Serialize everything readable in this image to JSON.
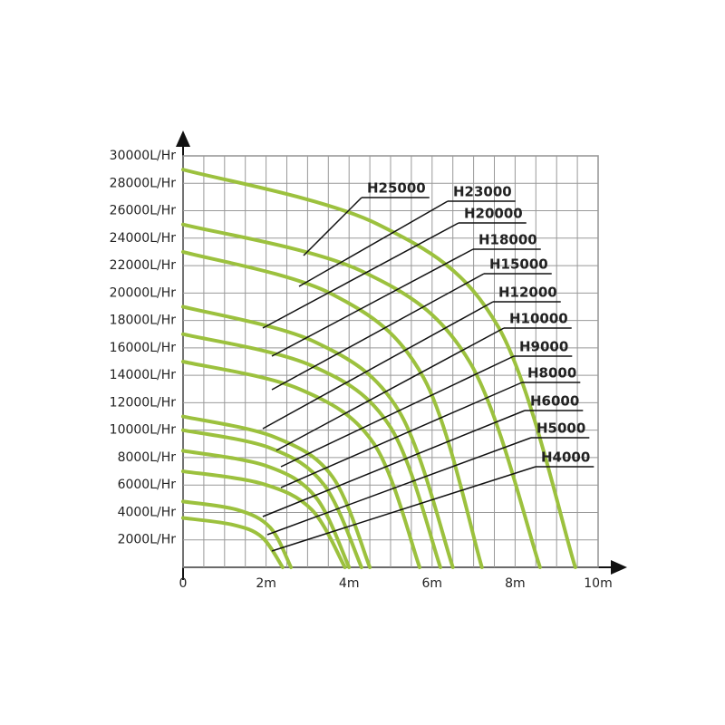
{
  "chart_data": {
    "type": "line",
    "xlim": [
      0,
      10
    ],
    "ylim": [
      0,
      30000
    ],
    "xticks": [
      0,
      {
        "value": 2,
        "label": "2m"
      },
      {
        "value": 4,
        "label": "4m"
      },
      {
        "value": 6,
        "label": "6m"
      },
      {
        "value": 8,
        "label": "8m"
      },
      {
        "value": 10,
        "label": "10m"
      }
    ],
    "yticks": [
      {
        "value": 2000,
        "label": "2000L/Hr"
      },
      {
        "value": 4000,
        "label": "4000L/Hr"
      },
      {
        "value": 6000,
        "label": "6000L/Hr"
      },
      {
        "value": 8000,
        "label": "8000L/Hr"
      },
      {
        "value": 10000,
        "label": "10000L/Hr"
      },
      {
        "value": 12000,
        "label": "12000L/Hr"
      },
      {
        "value": 14000,
        "label": "14000L/Hr"
      },
      {
        "value": 16000,
        "label": "16000L/Hr"
      },
      {
        "value": 18000,
        "label": "18000L/Hr"
      },
      {
        "value": 20000,
        "label": "20000L/Hr"
      },
      {
        "value": 22000,
        "label": "22000L/Hr"
      },
      {
        "value": 24000,
        "label": "24000L/Hr"
      },
      {
        "value": 26000,
        "label": "26000L/Hr"
      },
      {
        "value": 28000,
        "label": "28000L/Hr"
      },
      {
        "value": 30000,
        "label": "30000L/Hr"
      }
    ],
    "grid": true,
    "color": "#9cc13e",
    "series": [
      {
        "name": "H25000",
        "x": [
          0,
          4.7,
          7.6,
          9.45
        ],
        "values": [
          29000,
          25000,
          17500,
          0
        ]
      },
      {
        "name": "H23000",
        "x": [
          0,
          4.3,
          6.9,
          8.6
        ],
        "values": [
          25000,
          21600,
          15000,
          0
        ]
      },
      {
        "name": "H20000",
        "x": [
          0,
          3.6,
          5.8,
          7.2
        ],
        "values": [
          23000,
          19900,
          13800,
          0
        ]
      },
      {
        "name": "H18000",
        "x": [
          0,
          3.2,
          5.2,
          6.5
        ],
        "values": [
          19000,
          16400,
          11400,
          0
        ]
      },
      {
        "name": "H15000",
        "x": [
          0,
          3.1,
          5.0,
          6.2
        ],
        "values": [
          17000,
          14700,
          10200,
          0
        ]
      },
      {
        "name": "H12000",
        "x": [
          0,
          2.8,
          4.6,
          5.7
        ],
        "values": [
          15000,
          13000,
          9000,
          0
        ]
      },
      {
        "name": "H10000",
        "x": [
          0,
          2.2,
          3.6,
          4.5
        ],
        "values": [
          11000,
          9500,
          6600,
          0
        ]
      },
      {
        "name": "H9000",
        "x": [
          0,
          2.1,
          3.4,
          4.3
        ],
        "values": [
          10000,
          8700,
          6000,
          0
        ]
      },
      {
        "name": "H8000",
        "x": [
          0,
          2.0,
          3.2,
          4.0
        ],
        "values": [
          8500,
          7400,
          5100,
          0
        ]
      },
      {
        "name": "H6000",
        "x": [
          0,
          1.9,
          3.1,
          3.9
        ],
        "values": [
          7000,
          6100,
          4200,
          0
        ]
      },
      {
        "name": "H5000",
        "x": [
          0,
          1.3,
          2.1,
          2.6
        ],
        "values": [
          4800,
          4200,
          2900,
          0
        ]
      },
      {
        "name": "H4000",
        "x": [
          0,
          1.2,
          1.9,
          2.4
        ],
        "values": [
          3600,
          3100,
          2200,
          0
        ]
      }
    ]
  }
}
